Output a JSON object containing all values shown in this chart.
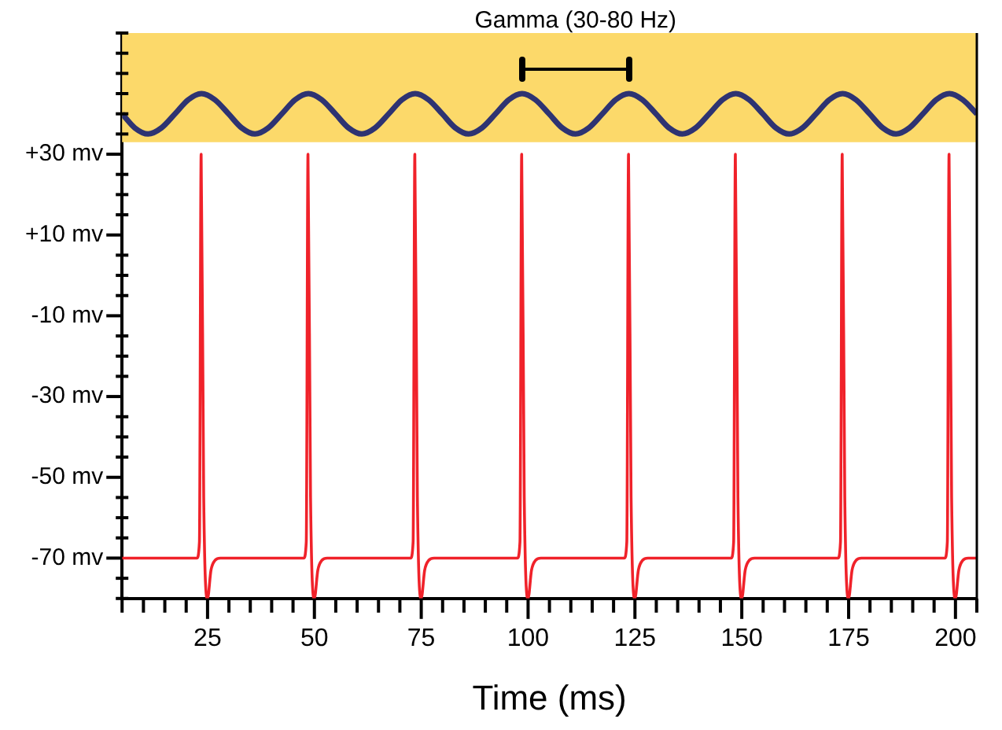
{
  "chart_data": {
    "type": "line",
    "xlabel": "Time (ms)",
    "marker": "none",
    "legend": false,
    "xlim": [
      5,
      205
    ],
    "ylim": [
      -80,
      60
    ],
    "xticks": [
      {
        "value": 5,
        "label": null
      },
      {
        "value": 10,
        "label": null
      },
      {
        "value": 15,
        "label": null
      },
      {
        "value": 20,
        "label": null
      },
      25,
      {
        "value": 30,
        "label": null
      },
      {
        "value": 35,
        "label": null
      },
      {
        "value": 40,
        "label": null
      },
      {
        "value": 45,
        "label": null
      },
      50,
      {
        "value": 55,
        "label": null
      },
      {
        "value": 60,
        "label": null
      },
      {
        "value": 65,
        "label": null
      },
      {
        "value": 70,
        "label": null
      },
      75,
      {
        "value": 80,
        "label": null
      },
      {
        "value": 85,
        "label": null
      },
      {
        "value": 90,
        "label": null
      },
      {
        "value": 95,
        "label": null
      },
      100,
      {
        "value": 105,
        "label": null
      },
      {
        "value": 110,
        "label": null
      },
      {
        "value": 115,
        "label": null
      },
      {
        "value": 120,
        "label": null
      },
      125,
      {
        "value": 130,
        "label": null
      },
      {
        "value": 135,
        "label": null
      },
      {
        "value": 140,
        "label": null
      },
      {
        "value": 145,
        "label": null
      },
      150,
      {
        "value": 155,
        "label": null
      },
      {
        "value": 160,
        "label": null
      },
      {
        "value": 165,
        "label": null
      },
      {
        "value": 170,
        "label": null
      },
      175,
      {
        "value": 180,
        "label": null
      },
      {
        "value": 185,
        "label": null
      },
      {
        "value": 190,
        "label": null
      },
      {
        "value": 195,
        "label": null
      },
      200,
      {
        "value": 205,
        "label": null
      }
    ],
    "yticks": [
      {
        "value": -80,
        "label": null
      },
      {
        "value": -75,
        "label": null
      },
      {
        "value": -70,
        "label": "-70 mv"
      },
      {
        "value": -65,
        "label": null
      },
      {
        "value": -60,
        "label": null
      },
      {
        "value": -55,
        "label": null
      },
      {
        "value": -50,
        "label": "-50 mv"
      },
      {
        "value": -45,
        "label": null
      },
      {
        "value": -40,
        "label": null
      },
      {
        "value": -35,
        "label": null
      },
      {
        "value": -30,
        "label": "-30 mv"
      },
      {
        "value": -25,
        "label": null
      },
      {
        "value": -20,
        "label": null
      },
      {
        "value": -15,
        "label": null
      },
      {
        "value": -10,
        "label": "-10 mv"
      },
      {
        "value": -5,
        "label": null
      },
      {
        "value": 0,
        "label": null
      },
      {
        "value": 5,
        "label": null
      },
      {
        "value": 10,
        "label": "+10 mv"
      },
      {
        "value": 15,
        "label": null
      },
      {
        "value": 20,
        "label": null
      },
      {
        "value": 25,
        "label": null
      },
      {
        "value": 30,
        "label": "+30 mv"
      },
      {
        "value": 35,
        "label": null
      },
      {
        "value": 40,
        "label": null
      },
      {
        "value": 45,
        "label": null
      },
      {
        "value": 50,
        "label": null
      },
      {
        "value": 55,
        "label": null
      },
      {
        "value": 60,
        "label": null
      }
    ],
    "bands": [
      {
        "axis": "y",
        "from": 33,
        "to": 60,
        "color": "#fcd96a"
      }
    ],
    "annotations": [
      "Gamma (30-80 Hz)"
    ],
    "series": [
      {
        "color": "#f0222a",
        "x": [
          5,
          22.5,
          23.1,
          23.5,
          24.1,
          25,
          25.8,
          26.8,
          28,
          47.5,
          48.1,
          48.5,
          49.1,
          50,
          50.8,
          51.8,
          53,
          72.5,
          73.1,
          73.5,
          74.1,
          75,
          75.8,
          76.8,
          78,
          97.5,
          98.1,
          98.5,
          99.1,
          100,
          100.8,
          101.8,
          103,
          122.5,
          123.1,
          123.5,
          124.1,
          125,
          125.8,
          126.8,
          128,
          147.5,
          148.1,
          148.5,
          149.1,
          150,
          150.8,
          151.8,
          153,
          172.5,
          173.1,
          173.5,
          174.1,
          175,
          175.8,
          176.8,
          178,
          197.5,
          198.1,
          198.5,
          199.1,
          200,
          200.8,
          201.8,
          203,
          205
        ],
        "values": [
          -70,
          -70,
          -66,
          30,
          -55,
          -80,
          -73,
          -70.5,
          -70,
          -70,
          -66,
          30,
          -55,
          -80,
          -73,
          -70.5,
          -70,
          -70,
          -66,
          30,
          -55,
          -80,
          -73,
          -70.5,
          -70,
          -70,
          -66,
          30,
          -55,
          -80,
          -73,
          -70.5,
          -70,
          -70,
          -66,
          30,
          -55,
          -80,
          -73,
          -70.5,
          -70,
          -70,
          -66,
          30,
          -55,
          -80,
          -73,
          -70.5,
          -70,
          -70,
          -66,
          30,
          -55,
          -80,
          -73,
          -70.5,
          -70,
          -70,
          -66,
          30,
          -55,
          -80,
          -73,
          -70.5,
          -70,
          -70
        ]
      },
      {
        "color": "#2e3372",
        "x": [
          5,
          8.0,
          11.1,
          14.2,
          17.4,
          20.5,
          23.6,
          26.7,
          29.9,
          33.0,
          36.1,
          39.2,
          42.4,
          45.5,
          48.6,
          51.7,
          54.9,
          58.0,
          61.1,
          64.2,
          67.4,
          70.5,
          73.6,
          76.7,
          79.9,
          83.0,
          86.1,
          89.2,
          92.4,
          95.5,
          98.6,
          101.7,
          104.9,
          108.0,
          111.1,
          114.2,
          117.4,
          120.5,
          123.6,
          126.7,
          129.9,
          133.0,
          136.1,
          139.2,
          142.4,
          145.5,
          148.6,
          151.7,
          154.9,
          158.0,
          161.1,
          164.2,
          167.4,
          170.5,
          173.6,
          176.7,
          179.9,
          183.0,
          186.1,
          189.2,
          192.4,
          195.5,
          198.6,
          201.7,
          205
        ],
        "values": [
          40,
          36.5,
          35,
          36.5,
          40,
          43.5,
          45,
          43.5,
          40,
          36.5,
          35,
          36.5,
          40,
          43.5,
          45,
          43.5,
          40,
          36.5,
          35,
          36.5,
          40,
          43.5,
          45,
          43.5,
          40,
          36.5,
          35,
          36.5,
          40,
          43.5,
          45,
          43.5,
          40,
          36.5,
          35,
          36.5,
          40,
          43.5,
          45,
          43.5,
          40,
          36.5,
          35,
          36.5,
          40,
          43.5,
          45,
          43.5,
          40,
          36.5,
          35,
          36.5,
          40,
          43.5,
          45,
          43.5,
          40,
          36.5,
          35,
          36.5,
          40,
          43.5,
          45,
          43.5,
          40
        ]
      }
    ]
  }
}
